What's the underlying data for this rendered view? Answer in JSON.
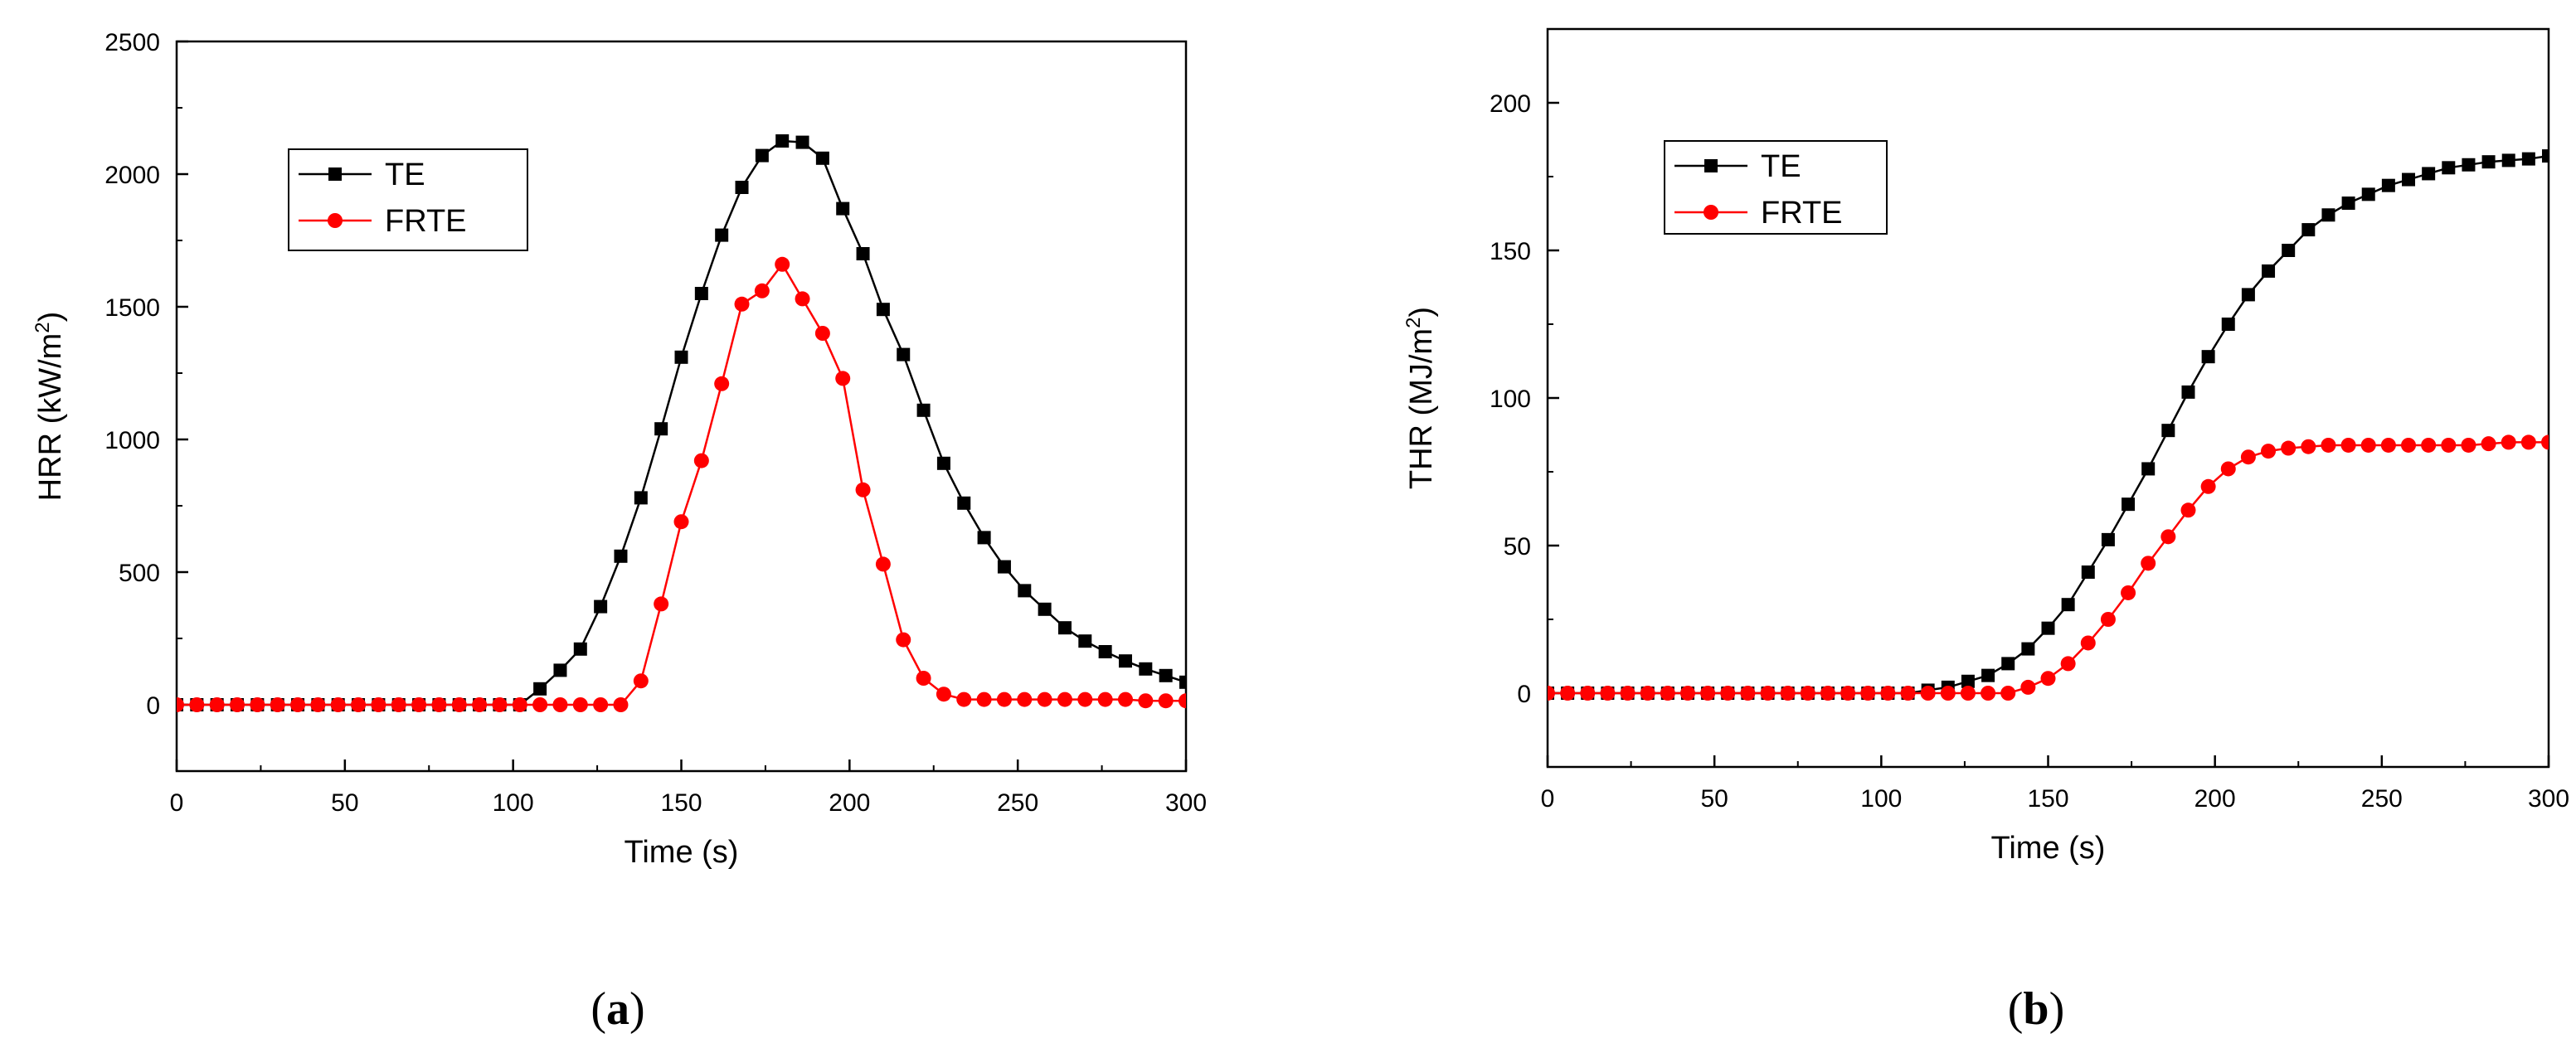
{
  "chart_data": [
    {
      "type": "line",
      "panel": "a",
      "caption_letter": "a",
      "xlabel": "Time (s)",
      "ylabel_text": "HRR (kW/m",
      "ylabel_sup": "2",
      "ylabel_close": ")",
      "xlim": [
        0,
        300
      ],
      "ylim": [
        -250,
        2500
      ],
      "xticks": [
        0,
        50,
        100,
        150,
        200,
        250,
        300
      ],
      "yticks": [
        0,
        500,
        1000,
        1500,
        2000,
        2500
      ],
      "legend_position": "top-left",
      "series": [
        {
          "name": "TE",
          "color": "#000000",
          "marker": "square",
          "x": [
            0,
            6,
            12,
            18,
            24,
            30,
            36,
            42,
            48,
            54,
            60,
            66,
            72,
            78,
            84,
            90,
            96,
            102,
            108,
            114,
            120,
            126,
            132,
            138,
            144,
            150,
            156,
            162,
            168,
            174,
            180,
            186,
            192,
            198,
            204,
            210,
            216,
            222,
            228,
            234,
            240,
            246,
            252,
            258,
            264,
            270,
            276,
            282,
            288,
            294,
            300
          ],
          "y": [
            0,
            0,
            0,
            0,
            0,
            0,
            0,
            0,
            0,
            0,
            0,
            0,
            0,
            0,
            0,
            0,
            0,
            0,
            60,
            130,
            210,
            370,
            560,
            780,
            1040,
            1310,
            1550,
            1770,
            1950,
            2070,
            2125,
            2120,
            2060,
            1870,
            1700,
            1490,
            1320,
            1110,
            910,
            760,
            630,
            520,
            430,
            360,
            290,
            240,
            200,
            165,
            135,
            110,
            85
          ]
        },
        {
          "name": "FRTE",
          "color": "#ff0000",
          "marker": "circle",
          "x": [
            0,
            6,
            12,
            18,
            24,
            30,
            36,
            42,
            48,
            54,
            60,
            66,
            72,
            78,
            84,
            90,
            96,
            102,
            108,
            114,
            120,
            126,
            132,
            138,
            144,
            150,
            156,
            162,
            168,
            174,
            180,
            186,
            192,
            198,
            204,
            210,
            216,
            222,
            228,
            234,
            240,
            246,
            252,
            258,
            264,
            270,
            276,
            282,
            288,
            294,
            300
          ],
          "y": [
            0,
            0,
            0,
            0,
            0,
            0,
            0,
            0,
            0,
            0,
            0,
            0,
            0,
            0,
            0,
            0,
            0,
            0,
            0,
            0,
            0,
            0,
            0,
            90,
            380,
            690,
            920,
            1210,
            1510,
            1560,
            1660,
            1530,
            1400,
            1230,
            810,
            530,
            245,
            100,
            40,
            20,
            20,
            20,
            20,
            20,
            20,
            20,
            20,
            20,
            15,
            15,
            15
          ]
        }
      ]
    },
    {
      "type": "line",
      "panel": "b",
      "caption_letter": "b",
      "xlabel": "Time (s)",
      "ylabel_text": "THR (MJ/m",
      "ylabel_sup": "2",
      "ylabel_close": ")",
      "xlim": [
        0,
        300
      ],
      "ylim": [
        -25,
        225
      ],
      "xticks": [
        0,
        50,
        100,
        150,
        200,
        250,
        300
      ],
      "yticks": [
        0,
        50,
        100,
        150,
        200
      ],
      "legend_position": "top-left",
      "series": [
        {
          "name": "TE",
          "color": "#000000",
          "marker": "square",
          "x": [
            0,
            6,
            12,
            18,
            24,
            30,
            36,
            42,
            48,
            54,
            60,
            66,
            72,
            78,
            84,
            90,
            96,
            102,
            108,
            114,
            120,
            126,
            132,
            138,
            144,
            150,
            156,
            162,
            168,
            174,
            180,
            186,
            192,
            198,
            204,
            210,
            216,
            222,
            228,
            234,
            240,
            246,
            252,
            258,
            264,
            270,
            276,
            282,
            288,
            294,
            300
          ],
          "y": [
            0,
            0,
            0,
            0,
            0,
            0,
            0,
            0,
            0,
            0,
            0,
            0,
            0,
            0,
            0,
            0,
            0,
            0,
            0,
            1,
            2,
            4,
            6,
            10,
            15,
            22,
            30,
            41,
            52,
            64,
            76,
            89,
            102,
            114,
            125,
            135,
            143,
            150,
            157,
            162,
            166,
            169,
            172,
            174,
            176,
            178,
            179,
            180,
            180.5,
            181,
            182
          ]
        },
        {
          "name": "FRTE",
          "color": "#ff0000",
          "marker": "circle",
          "x": [
            0,
            6,
            12,
            18,
            24,
            30,
            36,
            42,
            48,
            54,
            60,
            66,
            72,
            78,
            84,
            90,
            96,
            102,
            108,
            114,
            120,
            126,
            132,
            138,
            144,
            150,
            156,
            162,
            168,
            174,
            180,
            186,
            192,
            198,
            204,
            210,
            216,
            222,
            228,
            234,
            240,
            246,
            252,
            258,
            264,
            270,
            276,
            282,
            288,
            294,
            300
          ],
          "y": [
            0,
            0,
            0,
            0,
            0,
            0,
            0,
            0,
            0,
            0,
            0,
            0,
            0,
            0,
            0,
            0,
            0,
            0,
            0,
            0,
            0,
            0,
            0,
            0,
            2,
            5,
            10,
            17,
            25,
            34,
            44,
            53,
            62,
            70,
            76,
            80,
            82,
            83,
            83.5,
            84,
            84,
            84,
            84,
            84,
            84,
            84,
            84,
            84.5,
            85,
            85,
            85
          ]
        }
      ]
    }
  ]
}
